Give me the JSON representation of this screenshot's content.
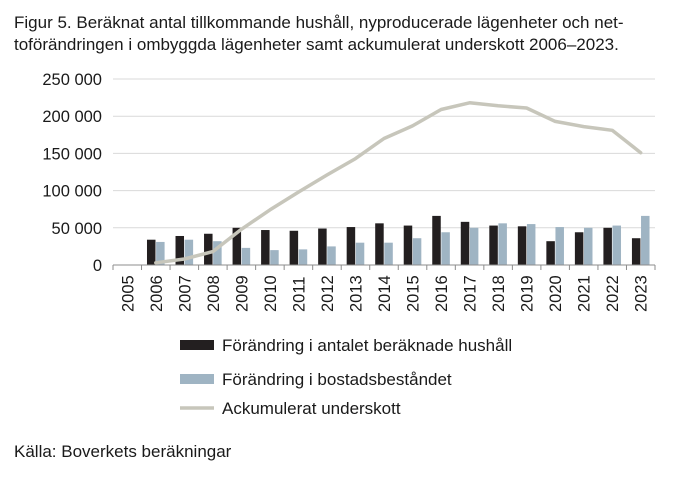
{
  "chart_data": {
    "type": "bar",
    "title_lines": [
      "Figur 5. Beräknat antal tillkommande hushåll, nyproducerade lägenheter och net-",
      "toförändringen i ombyggda lägenheter samt ackumulerat underskott 2006–2023."
    ],
    "source": "Källa: Boverkets beräkningar",
    "categories": [
      "2005",
      "2006",
      "2007",
      "2008",
      "2009",
      "2010",
      "2011",
      "2012",
      "2013",
      "2014",
      "2015",
      "2016",
      "2017",
      "2018",
      "2019",
      "2020",
      "2021",
      "2022",
      "2023"
    ],
    "y_tick_labels": [
      "0",
      "50 000",
      "100 000",
      "150 000",
      "200 000",
      "250 000"
    ],
    "ylim": [
      0,
      250000
    ],
    "grid": true,
    "legend_position": "bottom",
    "series": [
      {
        "name": "Förändring i antalet beräknade hushåll",
        "kind": "bar",
        "color": "#231f20",
        "values": [
          null,
          34000,
          39000,
          42000,
          50000,
          47000,
          46000,
          49000,
          51000,
          56000,
          53000,
          66000,
          58000,
          53000,
          52000,
          32000,
          44000,
          50000,
          36000
        ]
      },
      {
        "name": "Förändring i bostadsbeståndet",
        "kind": "bar",
        "color": "#9fb4c3",
        "values": [
          null,
          31000,
          34000,
          32000,
          23000,
          20000,
          21000,
          25000,
          30000,
          30000,
          36000,
          44000,
          50000,
          56000,
          55000,
          51000,
          50000,
          53000,
          66000
        ]
      },
      {
        "name": "Ackumulerat underskott",
        "kind": "line",
        "color": "#c7c6bb",
        "values": [
          null,
          3000,
          8000,
          18000,
          48000,
          74000,
          98000,
          121000,
          143000,
          170000,
          187000,
          209000,
          218000,
          214000,
          211000,
          193000,
          186000,
          181000,
          151000
        ]
      }
    ]
  }
}
